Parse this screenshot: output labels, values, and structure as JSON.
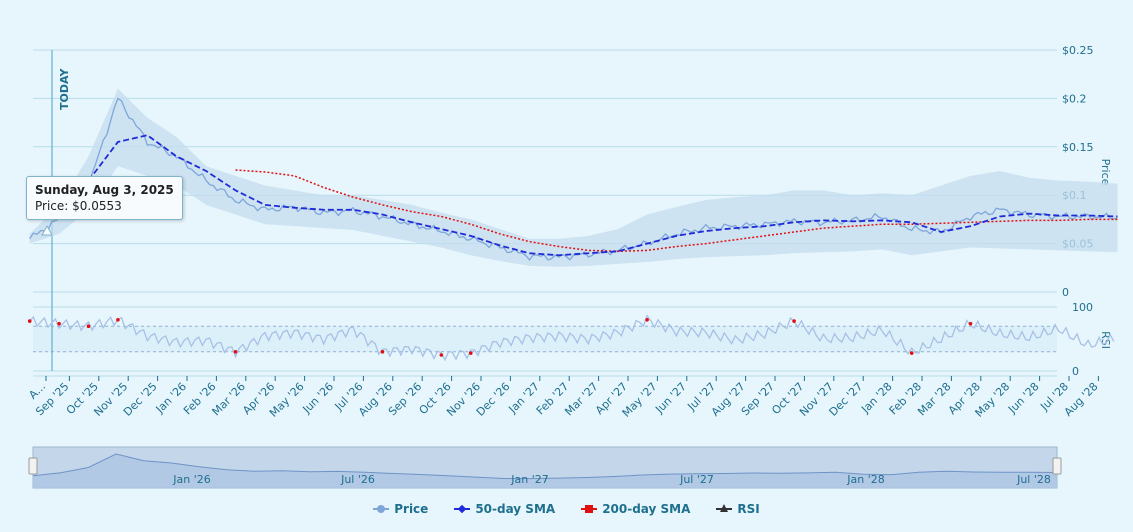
{
  "chart_data": {
    "type": "line",
    "today_label": "TODAY",
    "price_axis": {
      "title": "Price",
      "ticks": [
        "$0.25",
        "$0.2",
        "$0.15",
        "$0.1",
        "$0.05",
        "0"
      ],
      "ylim": [
        0,
        0.25
      ]
    },
    "rsi_axis": {
      "title": "RSI",
      "ticks": [
        "100",
        "0"
      ],
      "ylim": [
        0,
        100
      ],
      "bands": [
        70,
        30
      ]
    },
    "x_ticks": [
      "A...",
      "Sep '25",
      "Oct '25",
      "Nov '25",
      "Dec '25",
      "Jan '26",
      "Feb '26",
      "Mar '26",
      "Apr '26",
      "May '26",
      "Jun '26",
      "Jul '26",
      "Aug '26",
      "Sep '26",
      "Oct '26",
      "Nov '26",
      "Dec '26",
      "Jan '27",
      "Feb '27",
      "Mar '27",
      "Apr '27",
      "May '27",
      "Jun '27",
      "Jul '27",
      "Aug '27",
      "Sep '27",
      "Oct '27",
      "Nov '27",
      "Dec '27",
      "Jan '28",
      "Feb '28",
      "Mar '28",
      "Apr '28",
      "May '28",
      "Jun '28",
      "Jul '28",
      "Aug '28"
    ],
    "navigator_ticks": [
      "Jan '26",
      "Jul '26",
      "Jan '27",
      "Jul '27",
      "Jan '28",
      "Jul '28"
    ],
    "price_series": {
      "name": "Price",
      "dates": [
        "Aug '25",
        "Sep '25",
        "Oct '25",
        "Nov '25",
        "Dec '25",
        "Jan '26",
        "Feb '26",
        "Mar '26",
        "Apr '26",
        "May '26",
        "Jun '26",
        "Jul '26",
        "Aug '26",
        "Sep '26",
        "Oct '26",
        "Nov '26",
        "Dec '26",
        "Jan '27",
        "Feb '27",
        "Mar '27",
        "Apr '27",
        "May '27",
        "Jun '27",
        "Jul '27",
        "Aug '27",
        "Sep '27",
        "Oct '27",
        "Nov '27",
        "Dec '27",
        "Jan '28",
        "Feb '28",
        "Mar '28",
        "Apr '28",
        "May '28",
        "Jun '28",
        "Jul '28",
        "Aug '28",
        "Sep '28"
      ],
      "values": [
        0.055,
        0.075,
        0.11,
        0.2,
        0.155,
        0.14,
        0.115,
        0.095,
        0.085,
        0.088,
        0.082,
        0.084,
        0.078,
        0.07,
        0.063,
        0.055,
        0.046,
        0.037,
        0.036,
        0.039,
        0.043,
        0.05,
        0.06,
        0.066,
        0.068,
        0.07,
        0.073,
        0.072,
        0.074,
        0.078,
        0.065,
        0.062,
        0.078,
        0.085,
        0.08,
        0.078,
        0.078,
        0.077
      ],
      "band_upper": [
        0.06,
        0.09,
        0.14,
        0.21,
        0.18,
        0.16,
        0.13,
        0.12,
        0.11,
        0.105,
        0.1,
        0.1,
        0.095,
        0.09,
        0.082,
        0.075,
        0.065,
        0.055,
        0.055,
        0.058,
        0.065,
        0.08,
        0.088,
        0.095,
        0.098,
        0.1,
        0.105,
        0.105,
        0.1,
        0.102,
        0.1,
        0.11,
        0.12,
        0.125,
        0.118,
        0.115,
        0.114,
        0.112
      ],
      "band_lower": [
        0.05,
        0.06,
        0.085,
        0.13,
        0.12,
        0.11,
        0.09,
        0.08,
        0.07,
        0.068,
        0.066,
        0.064,
        0.058,
        0.052,
        0.046,
        0.038,
        0.032,
        0.027,
        0.026,
        0.027,
        0.029,
        0.031,
        0.034,
        0.036,
        0.037,
        0.038,
        0.04,
        0.041,
        0.042,
        0.044,
        0.038,
        0.042,
        0.046,
        0.045,
        0.044,
        0.043,
        0.042,
        0.041
      ]
    },
    "sma50_series": {
      "name": "50-day SMA",
      "dates": [
        "Oct '25",
        "Nov '25",
        "Dec '25",
        "Jan '26",
        "Feb '26",
        "Mar '26",
        "Apr '26",
        "May '26",
        "Jun '26",
        "Jul '26",
        "Aug '26",
        "Sep '26",
        "Oct '26",
        "Nov '26",
        "Dec '26",
        "Jan '27",
        "Feb '27",
        "Mar '27",
        "Apr '27",
        "May '27",
        "Jun '27",
        "Jul '27",
        "Aug '27",
        "Sep '27",
        "Oct '27",
        "Nov '27",
        "Dec '27",
        "Jan '28",
        "Feb '28",
        "Mar '28",
        "Apr '28",
        "May '28",
        "Jun '28",
        "Jul '28",
        "Aug '28",
        "Sep '28"
      ],
      "values": [
        0.115,
        0.155,
        0.162,
        0.14,
        0.125,
        0.105,
        0.09,
        0.087,
        0.085,
        0.085,
        0.08,
        0.072,
        0.065,
        0.058,
        0.048,
        0.04,
        0.038,
        0.04,
        0.042,
        0.05,
        0.058,
        0.063,
        0.066,
        0.068,
        0.072,
        0.074,
        0.073,
        0.074,
        0.072,
        0.062,
        0.068,
        0.078,
        0.081,
        0.079,
        0.079,
        0.078
      ]
    },
    "sma200_series": {
      "name": "200-day SMA",
      "dates": [
        "Mar '26",
        "Apr '26",
        "May '26",
        "Jun '26",
        "Jul '26",
        "Aug '26",
        "Sep '26",
        "Oct '26",
        "Nov '26",
        "Dec '26",
        "Jan '27",
        "Feb '27",
        "Mar '27",
        "Apr '27",
        "May '27",
        "Jun '27",
        "Jul '27",
        "Aug '27",
        "Sep '27",
        "Oct '27",
        "Nov '27",
        "Dec '27",
        "Jan '28",
        "Feb '28",
        "Mar '28",
        "Apr '28",
        "May '28",
        "Jun '28",
        "Jul '28",
        "Aug '28",
        "Sep '28"
      ],
      "values": [
        0.126,
        0.124,
        0.12,
        0.108,
        0.098,
        0.09,
        0.083,
        0.078,
        0.07,
        0.06,
        0.052,
        0.047,
        0.043,
        0.042,
        0.043,
        0.047,
        0.05,
        0.054,
        0.058,
        0.062,
        0.066,
        0.068,
        0.07,
        0.07,
        0.071,
        0.072,
        0.073,
        0.074,
        0.074,
        0.075,
        0.075
      ]
    },
    "rsi_series": {
      "name": "RSI",
      "dates": [
        "Aug '25",
        "Sep '25",
        "Oct '25",
        "Nov '25",
        "Dec '25",
        "Jan '26",
        "Feb '26",
        "Mar '26",
        "Apr '26",
        "May '26",
        "Jun '26",
        "Jul '26",
        "Aug '26",
        "Sep '26",
        "Oct '26",
        "Nov '26",
        "Dec '26",
        "Jan '27",
        "Feb '27",
        "Mar '27",
        "Apr '27",
        "May '27",
        "Jun '27",
        "Jul '27",
        "Aug '27",
        "Sep '27",
        "Oct '27",
        "Nov '27",
        "Dec '27",
        "Jan '28",
        "Feb '28",
        "Mar '28",
        "Apr '28",
        "May '28",
        "Jun '28",
        "Jul '28",
        "Aug '28",
        "Sep '28"
      ],
      "values": [
        78,
        74,
        70,
        80,
        55,
        45,
        48,
        30,
        55,
        60,
        50,
        65,
        30,
        35,
        25,
        28,
        45,
        52,
        55,
        50,
        60,
        80,
        62,
        60,
        48,
        58,
        78,
        50,
        52,
        64,
        28,
        50,
        74,
        58,
        52,
        66,
        40,
        52
      ]
    },
    "tooltip": {
      "date": "Sunday, Aug 3, 2025",
      "label": "Price",
      "value": "$0.0553"
    },
    "legend": [
      "Price",
      "50-day SMA",
      "200-day SMA",
      "RSI"
    ],
    "colors": {
      "price": "#7ea6d9",
      "band": "#c6dcef",
      "sma50": "#1f2bd8",
      "sma200": "#e01010",
      "rsi": "#a8c0e6",
      "rsi_hot": "#e01010",
      "axis": "#1f6f8f",
      "grid": "#b9dcea",
      "today": "#4aa3c8",
      "rsi_legend": "#333333"
    }
  }
}
